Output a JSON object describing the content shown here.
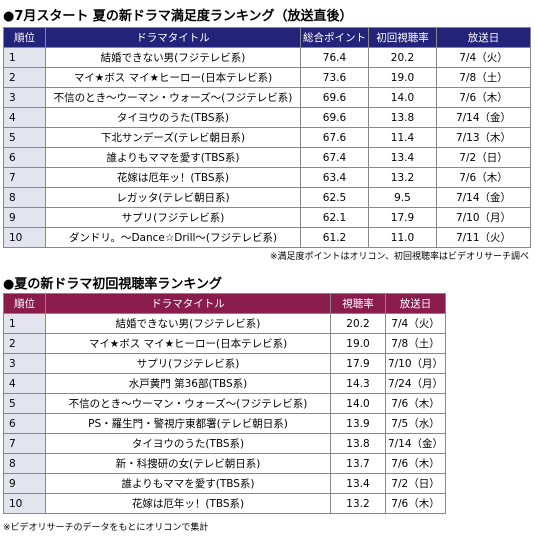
{
  "title1": "●7月スタート 夏の新ドラマ満足度ランキング（放送直後）",
  "table1": {
    "header": [
      "順位",
      "ドラマタイトル",
      "総合ポイント",
      "初回視聴率",
      "放送日"
    ],
    "rows": [
      [
        "1",
        "結婚できない男(フジテレビ系)",
        "76.4",
        "20.2",
        "7/4（火）"
      ],
      [
        "2",
        "マイ★ボス マイ★ヒーロー(日本テレビ系)",
        "73.6",
        "19.0",
        "7/8（土）"
      ],
      [
        "3",
        "不信のとき～ウーマン・ウォーズ～(フジテレビ系)",
        "69.6",
        "14.0",
        "7/6（木）"
      ],
      [
        "4",
        "タイヨウのうた(TBS系)",
        "69.6",
        "13.8",
        "7/14（金）"
      ],
      [
        "5",
        "下北サンデーズ(テレビ朝日系)",
        "67.6",
        "11.4",
        "7/13（木）"
      ],
      [
        "6",
        "誰よりもママを愛す(TBS系)",
        "67.4",
        "13.4",
        "7/2（日）"
      ],
      [
        "7",
        "花嫁は厄年ッ！(TBS系)",
        "63.4",
        "13.2",
        "7/6（木）"
      ],
      [
        "8",
        "レガッタ(テレビ朝日系)",
        "62.5",
        "9.5",
        "7/14（金）"
      ],
      [
        "9",
        "サプリ(フジテレビ系)",
        "62.1",
        "17.9",
        "7/10（月）"
      ],
      [
        "10",
        "ダンドリ。～Dance☆Drill～(フジテレビ系)",
        "61.2",
        "11.0",
        "7/11（火）"
      ]
    ]
  },
  "note1": "※満足度ポイントはオリコン、初回視聴率はビデオリサーチ調べ",
  "title2": "●夏の新ドラマ初回視聴率ランキング",
  "table2": {
    "header": [
      "順位",
      "ドラマタイトル",
      "視聴率",
      "放送日"
    ],
    "rows": [
      [
        "1",
        "結婚できない男(フジテレビ系)",
        "20.2",
        "7/4（火）"
      ],
      [
        "2",
        "マイ★ボス マイ★ヒーロー(日本テレビ系)",
        "19.0",
        "7/8（土）"
      ],
      [
        "3",
        "サプリ(フジテレビ系)",
        "17.9",
        "7/10（月）"
      ],
      [
        "4",
        "水戸黄門 第36部(TBS系)",
        "14.3",
        "7/24（月）"
      ],
      [
        "5",
        "不信のとき～ウーマン・ウォーズ～(フジテレビ系)",
        "14.0",
        "7/6（木）"
      ],
      [
        "6",
        "PS・羅生門・警視庁東都署(テレビ朝日系)",
        "13.9",
        "7/5（水）"
      ],
      [
        "7",
        "タイヨウのうた(TBS系)",
        "13.8",
        "7/14（金）"
      ],
      [
        "8",
        "新・科捜研の女(テレビ朝日系)",
        "13.7",
        "7/6（木）"
      ],
      [
        "9",
        "誰よりもママを愛す(TBS系)",
        "13.4",
        "7/2（日）"
      ],
      [
        "10",
        "花嫁は厄年ッ！(TBS系)",
        "13.2",
        "7/6（木）"
      ]
    ]
  },
  "note2": "※ビデオリサーチのデータをもとにオリコンで集計"
}
